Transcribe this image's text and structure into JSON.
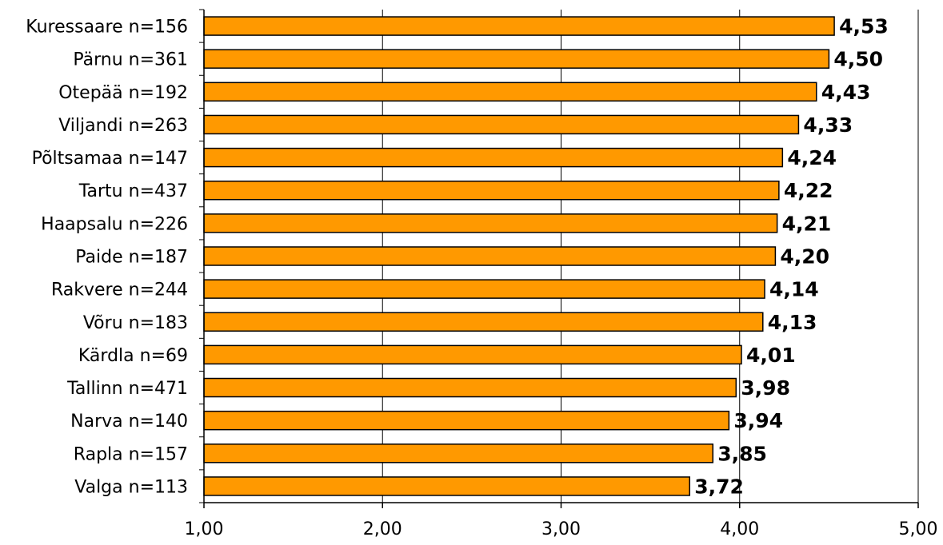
{
  "colors": {
    "bar_fill": "#FF9900",
    "bar_stroke": "#000000",
    "axis": "#000000",
    "grid": "#000000",
    "background": "#FFFFFF"
  },
  "chart_data": {
    "type": "bar",
    "orientation": "horizontal",
    "categories": [
      "Kuressaare n=156",
      "Pärnu n=361",
      "Otepää n=192",
      "Viljandi n=263",
      "Põltsamaa n=147",
      "Tartu n=437",
      "Haapsalu n=226",
      "Paide n=187",
      "Rakvere n=244",
      "Võru n=183",
      "Kärdla n=69",
      "Tallinn n=471",
      "Narva n=140",
      "Rapla n=157",
      "Valga n=113"
    ],
    "values": [
      4.53,
      4.5,
      4.43,
      4.33,
      4.24,
      4.22,
      4.21,
      4.2,
      4.14,
      4.13,
      4.01,
      3.98,
      3.94,
      3.85,
      3.72
    ],
    "value_labels": [
      "4,53",
      "4,50",
      "4,43",
      "4,33",
      "4,24",
      "4,22",
      "4,21",
      "4,20",
      "4,14",
      "4,13",
      "4,01",
      "3,98",
      "3,94",
      "3,85",
      "3,72"
    ],
    "xlim": [
      1,
      5
    ],
    "x_ticks": [
      1,
      2,
      3,
      4,
      5
    ],
    "x_tick_labels": [
      "1,00",
      "2,00",
      "3,00",
      "4,00",
      "5,00"
    ],
    "title": "",
    "xlabel": "",
    "ylabel": "",
    "grid": true,
    "legend": "none"
  }
}
